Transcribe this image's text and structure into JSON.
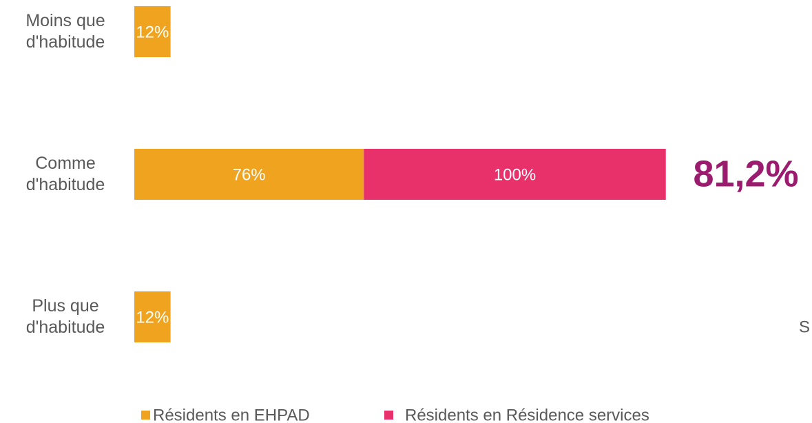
{
  "chart_data": {
    "type": "stacked_bar_horizontal",
    "categories": [
      "Moins que d'habitude",
      "Comme d'habitude",
      "Plus que d'habitude"
    ],
    "series": [
      {
        "name": "Résidents en EHPAD",
        "color": "#f0a31e",
        "values": [
          12,
          76,
          12
        ],
        "value_labels": [
          "12%",
          "76%",
          "12%"
        ]
      },
      {
        "name": "Résidents en Résidence services",
        "color": "#e8306b",
        "values": [
          null,
          100,
          null
        ],
        "value_labels": [
          null,
          "100%",
          null
        ]
      }
    ],
    "annotations": [
      "81,2%",
      "S"
    ],
    "legend": "bottom"
  }
}
